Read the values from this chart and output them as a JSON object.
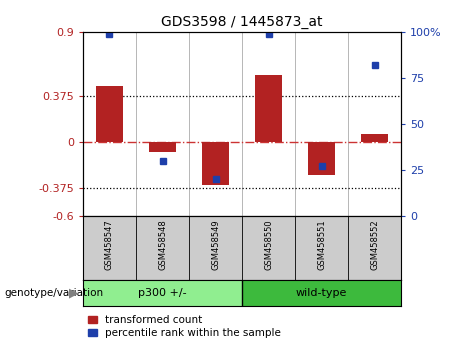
{
  "title": "GDS3598 / 1445873_at",
  "samples": [
    "GSM458547",
    "GSM458548",
    "GSM458549",
    "GSM458550",
    "GSM458551",
    "GSM458552"
  ],
  "red_values": [
    0.46,
    -0.08,
    -0.35,
    0.55,
    -0.27,
    0.07
  ],
  "blue_values": [
    99,
    30,
    20,
    99,
    27,
    82
  ],
  "ylim_left": [
    -0.6,
    0.9
  ],
  "ylim_right": [
    0,
    100
  ],
  "yticks_left": [
    -0.6,
    -0.375,
    0,
    0.375,
    0.9
  ],
  "ytick_labels_left": [
    "-0.6",
    "-0.375",
    "0",
    "0.375",
    "0.9"
  ],
  "yticks_right": [
    0,
    25,
    50,
    75,
    100
  ],
  "ytick_labels_right": [
    "0",
    "25",
    "50",
    "75",
    "100%"
  ],
  "hlines": [
    0.375,
    -0.375
  ],
  "red_color": "#b22222",
  "blue_color": "#1e3faa",
  "dashed_line_color": "#cc3333",
  "group1_label": "p300 +/-",
  "group2_label": "wild-type",
  "group1_color": "#90ee90",
  "group2_color": "#3dba3d",
  "group1_indices": [
    0,
    1,
    2
  ],
  "group2_indices": [
    3,
    4,
    5
  ],
  "genotype_label": "genotype/variation",
  "legend1": "transformed count",
  "legend2": "percentile rank within the sample",
  "bar_width": 0.5,
  "blue_marker_size": 5,
  "sample_label_color": "#cccccc"
}
